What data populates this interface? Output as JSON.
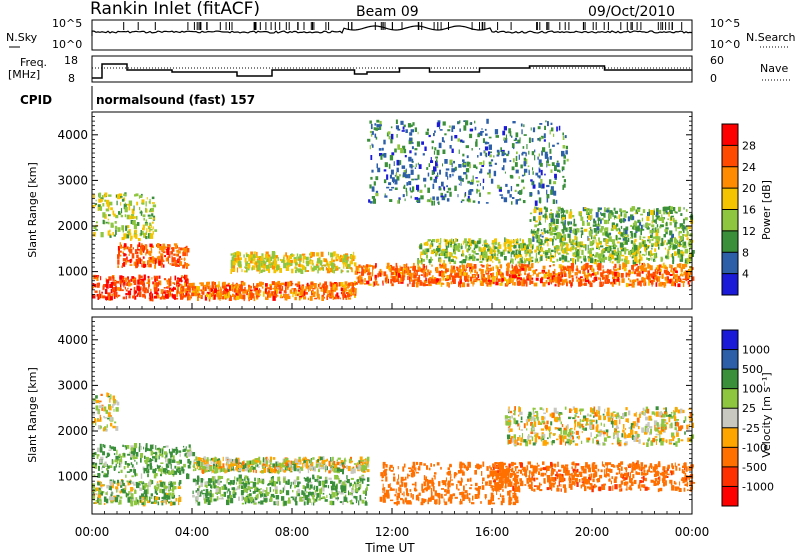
{
  "header": {
    "station": "Rankin Inlet (fitACF)",
    "beam": "Beam 09",
    "date": "09/Oct/2010"
  },
  "nsky_panel": {
    "left_label": "N.Sky",
    "right_label": "N.Search",
    "left_ticks": [
      "10^5",
      "10^0"
    ],
    "right_ticks": [
      "10^5",
      "10^0"
    ]
  },
  "freq_panel": {
    "left_label_1": "Freq.",
    "left_label_2": "[MHz]",
    "right_label": "Nave",
    "left_ticks": [
      "18",
      "8"
    ],
    "right_ticks": [
      "60",
      "0"
    ]
  },
  "cpid_panel": {
    "label": "CPID",
    "value": "normalsound (fast) 157"
  },
  "colorbars": {
    "power": {
      "label": "Power [dB]",
      "ticks": [
        "28",
        "24",
        "20",
        "16",
        "12",
        "8",
        "4"
      ],
      "colors": [
        "#ff0000",
        "#ff4a00",
        "#ff8c00",
        "#f5c400",
        "#8ec63f",
        "#3a8f3a",
        "#2c5fa8",
        "#1a1ad8"
      ]
    },
    "velocity": {
      "label": "Velocity [m s⁻¹]",
      "ticks": [
        "1000",
        "500",
        "100",
        "25",
        "-25",
        "-100",
        "-500",
        "-1000"
      ],
      "colors": [
        "#1a1ad8",
        "#2c5fa8",
        "#3a8f3a",
        "#8ec63f",
        "#c8c8c0",
        "#ffa500",
        "#ff7000",
        "#ff3000",
        "#ff0000"
      ]
    }
  },
  "axes": {
    "ylabel": "Slant Range [km]",
    "yticks": [
      "4000",
      "3000",
      "2000",
      "1000"
    ],
    "xticks": [
      "00:00",
      "04:00",
      "08:00",
      "12:00",
      "16:00",
      "20:00",
      "00:00"
    ],
    "xlabel": "Time UT"
  },
  "chart_data": [
    {
      "type": "heatmap",
      "title": "Power",
      "ylabel": "Slant Range [km]",
      "xlabel": "Time UT",
      "ylim": [
        180,
        4500
      ],
      "xlim_hours": [
        0,
        24
      ],
      "colorbar_label": "Power [dB]",
      "colorbar_ticks": [
        28,
        24,
        20,
        16,
        12,
        8,
        4
      ],
      "regions": [
        {
          "t": [
            0.0,
            3.8
          ],
          "r": [
            400,
            900
          ],
          "level": 27
        },
        {
          "t": [
            1.0,
            3.8
          ],
          "r": [
            1100,
            1600
          ],
          "level": 25
        },
        {
          "t": [
            0.0,
            2.5
          ],
          "r": [
            1700,
            2700
          ],
          "level": 15
        },
        {
          "t": [
            3.5,
            10.5
          ],
          "r": [
            400,
            750
          ],
          "level": 24
        },
        {
          "t": [
            5.5,
            10.5
          ],
          "r": [
            1000,
            1400
          ],
          "level": 17
        },
        {
          "t": [
            10.5,
            24.0
          ],
          "r": [
            700,
            1150
          ],
          "level": 24
        },
        {
          "t": [
            13.0,
            24.0
          ],
          "r": [
            1200,
            1700
          ],
          "level": 14
        },
        {
          "t": [
            17.5,
            24.0
          ],
          "r": [
            1700,
            2400
          ],
          "level": 12
        },
        {
          "t": [
            11.0,
            19.0
          ],
          "r": [
            2500,
            4300
          ],
          "level": 8
        }
      ]
    },
    {
      "type": "heatmap",
      "title": "Velocity",
      "ylabel": "Slant Range [km]",
      "xlabel": "Time UT",
      "ylim": [
        180,
        4500
      ],
      "xlim_hours": [
        0,
        24
      ],
      "colorbar_label": "Velocity [m s⁻¹]",
      "colorbar_ticks": [
        1000,
        500,
        100,
        25,
        -25,
        -100,
        -500,
        -1000
      ],
      "regions": [
        {
          "t": [
            0.0,
            4.0
          ],
          "r": [
            1000,
            1700
          ],
          "value": 120
        },
        {
          "t": [
            0.0,
            3.5
          ],
          "r": [
            400,
            900
          ],
          "value": 60
        },
        {
          "t": [
            0.0,
            1.0
          ],
          "r": [
            2000,
            2800
          ],
          "value": 0
        },
        {
          "t": [
            4.0,
            11.0
          ],
          "r": [
            1100,
            1400
          ],
          "value": 0
        },
        {
          "t": [
            4.0,
            11.0
          ],
          "r": [
            400,
            1000
          ],
          "value": 120
        },
        {
          "t": [
            11.5,
            17.0
          ],
          "r": [
            400,
            1300
          ],
          "value": -300
        },
        {
          "t": [
            16.0,
            24.0
          ],
          "r": [
            700,
            1300
          ],
          "value": -400
        },
        {
          "t": [
            16.5,
            24.0
          ],
          "r": [
            1700,
            2500
          ],
          "value": 0
        }
      ]
    }
  ]
}
